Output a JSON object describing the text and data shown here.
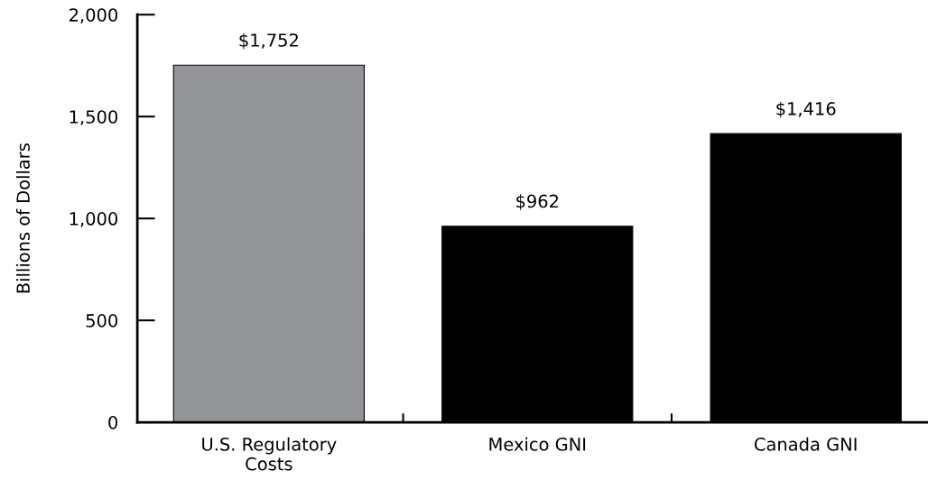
{
  "chart_data": {
    "type": "bar",
    "ylabel": "Billions of Dollars",
    "categories": [
      "U.S. Regulatory\nCosts",
      "Mexico GNI",
      "Canada GNI"
    ],
    "values": [
      1752,
      962,
      1416
    ],
    "colors": [
      "#939598",
      "#000000",
      "#000000"
    ],
    "value_labels": [
      "$1,752",
      "$962",
      "$1,416"
    ],
    "ylim": [
      0,
      2000
    ],
    "yticks": [
      0,
      500,
      {
        "value": 1000,
        "label": "1,000"
      },
      {
        "value": 1500,
        "label": "1,500"
      },
      {
        "value": 2000,
        "label": "2,000"
      }
    ],
    "grid": false,
    "legend": false
  }
}
